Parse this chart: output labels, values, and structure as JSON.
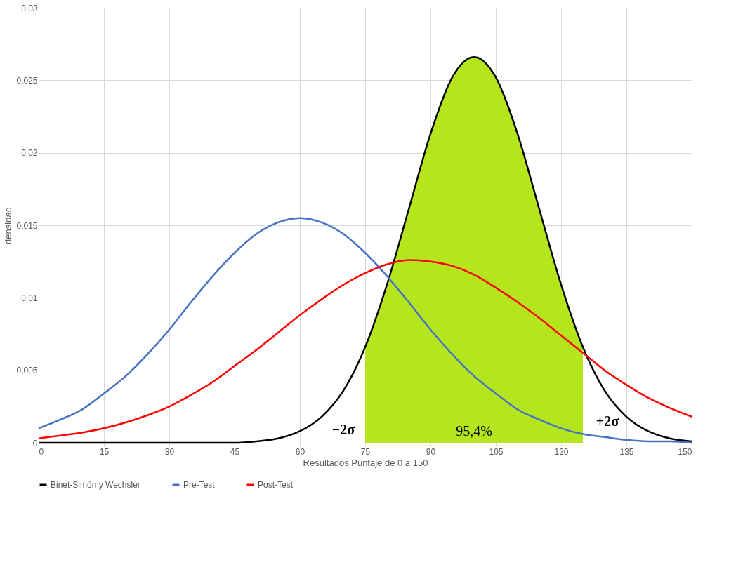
{
  "chart_data": {
    "type": "line",
    "xlabel": "Resultados Puntaje de 0 a 150",
    "ylabel": "densidad",
    "x": [
      0,
      5,
      10,
      15,
      20,
      25,
      30,
      35,
      40,
      45,
      50,
      55,
      60,
      65,
      70,
      75,
      80,
      85,
      90,
      95,
      100,
      105,
      110,
      115,
      120,
      125,
      130,
      135,
      140,
      145,
      150
    ],
    "series": [
      {
        "type": "area",
        "color": "#b5e61d",
        "x": [
          75,
          80,
          85,
          90,
          95,
          100,
          105,
          110,
          115,
          120,
          125
        ],
        "values": [
          0.0066,
          0.0109,
          0.0161,
          0.0213,
          0.0252,
          0.0266,
          0.0252,
          0.0213,
          0.0161,
          0.0109,
          0.0066
        ]
      },
      {
        "name": "Binet-Simón y Wechsler",
        "color": "#000000",
        "values": [
          0,
          0,
          0,
          0,
          0,
          0,
          0,
          0,
          0,
          0,
          0.0001,
          0.0003,
          0.0008,
          0.0018,
          0.0036,
          0.0066,
          0.0109,
          0.0161,
          0.0213,
          0.0252,
          0.0266,
          0.0252,
          0.0213,
          0.0161,
          0.0109,
          0.0066,
          0.0036,
          0.0018,
          0.0008,
          0.0003,
          0.0001
        ]
      },
      {
        "name": "Pre-Test",
        "color": "#4472c4",
        "values": [
          0.001,
          0.0016,
          0.0023,
          0.0034,
          0.0046,
          0.0061,
          0.0078,
          0.0097,
          0.0115,
          0.0131,
          0.0144,
          0.0152,
          0.0155,
          0.0152,
          0.0144,
          0.0131,
          0.0115,
          0.0097,
          0.0078,
          0.0061,
          0.0046,
          0.0034,
          0.0023,
          0.0016,
          0.001,
          0.0006,
          0.0004,
          0.0002,
          0.0001,
          0.0001,
          0
        ]
      },
      {
        "name": "Post-Test",
        "color": "#ff0000",
        "values": [
          0.0003,
          0.0005,
          0.0007,
          0.001,
          0.0014,
          0.0019,
          0.0025,
          0.0033,
          0.0042,
          0.0053,
          0.0064,
          0.0076,
          0.0088,
          0.0099,
          0.0109,
          0.0117,
          0.0123,
          0.0126,
          0.0125,
          0.0122,
          0.0116,
          0.0107,
          0.0097,
          0.0086,
          0.0074,
          0.0062,
          0.005,
          0.004,
          0.0031,
          0.0024,
          0.0018
        ]
      }
    ],
    "xlim": [
      0,
      150
    ],
    "xticks": [
      0,
      15,
      30,
      45,
      60,
      75,
      90,
      105,
      120,
      135,
      150
    ],
    "ylim": [
      0,
      0.03
    ],
    "yticks": [
      0,
      {
        "value": 0.005,
        "label": "0,005"
      },
      {
        "value": 0.01,
        "label": "0,01"
      },
      {
        "value": 0.015,
        "label": "0,015"
      },
      {
        "value": 0.02,
        "label": "0,02"
      },
      {
        "value": 0.025,
        "label": "0,025"
      },
      {
        "value": 0.03,
        "label": "0,03"
      }
    ],
    "annotations": [
      "−2σ",
      "+2σ",
      "95,4%"
    ],
    "grid": true,
    "legend": "bottom",
    "marker": "none",
    "line_style": "solid"
  }
}
